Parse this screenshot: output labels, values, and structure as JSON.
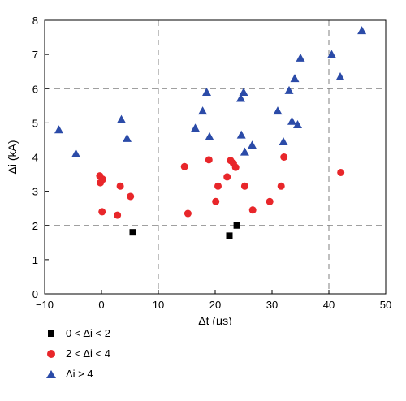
{
  "chart_data": {
    "type": "scatter",
    "xlabel": "Δt (μs)",
    "ylabel": "Δi (kA)",
    "xlim": [
      -10,
      50
    ],
    "ylim": [
      0,
      8
    ],
    "xticks": [
      -10,
      0,
      10,
      20,
      30,
      40,
      50
    ],
    "yticks": [
      0,
      1,
      2,
      3,
      4,
      5,
      6,
      7,
      8
    ],
    "grid": "dashed at x=10, x=40, y=2, y=4, y=6",
    "legend": "below plot, left",
    "series": [
      {
        "name": "0 < Δi < 2",
        "marker": "square",
        "color": "#000000",
        "points": [
          [
            5.5,
            1.8
          ],
          [
            22.5,
            1.7
          ],
          [
            23.8,
            2.0
          ]
        ]
      },
      {
        "name": "2 < Δi < 4",
        "marker": "circle",
        "color": "#e8262a",
        "points": [
          [
            -0.3,
            3.45
          ],
          [
            0.2,
            3.35
          ],
          [
            -0.2,
            3.25
          ],
          [
            0.1,
            2.4
          ],
          [
            2.8,
            2.3
          ],
          [
            3.3,
            3.15
          ],
          [
            5.1,
            2.85
          ],
          [
            14.6,
            3.72
          ],
          [
            15.2,
            2.35
          ],
          [
            18.9,
            3.92
          ],
          [
            20.1,
            2.7
          ],
          [
            20.5,
            3.15
          ],
          [
            22.1,
            3.42
          ],
          [
            22.7,
            3.9
          ],
          [
            23.2,
            3.82
          ],
          [
            23.6,
            3.7
          ],
          [
            25.2,
            3.15
          ],
          [
            26.6,
            2.45
          ],
          [
            29.6,
            2.7
          ],
          [
            31.6,
            3.15
          ],
          [
            32.1,
            4.0
          ],
          [
            42.1,
            3.55
          ]
        ]
      },
      {
        "name": "Δi > 4",
        "marker": "triangle",
        "color": "#2b4ba8",
        "points": [
          [
            -7.5,
            4.8
          ],
          [
            -4.5,
            4.1
          ],
          [
            3.5,
            5.1
          ],
          [
            4.5,
            4.55
          ],
          [
            16.5,
            4.85
          ],
          [
            17.8,
            5.35
          ],
          [
            18.5,
            5.9
          ],
          [
            19.0,
            4.6
          ],
          [
            24.5,
            5.72
          ],
          [
            24.6,
            4.65
          ],
          [
            25.0,
            5.9
          ],
          [
            25.2,
            4.15
          ],
          [
            26.5,
            4.35
          ],
          [
            31.0,
            5.35
          ],
          [
            32.0,
            4.45
          ],
          [
            33.0,
            5.95
          ],
          [
            33.5,
            5.05
          ],
          [
            34.0,
            6.3
          ],
          [
            34.5,
            4.95
          ],
          [
            35.0,
            6.9
          ],
          [
            40.5,
            7.0
          ],
          [
            42.0,
            6.35
          ],
          [
            45.8,
            7.7
          ]
        ]
      }
    ]
  }
}
